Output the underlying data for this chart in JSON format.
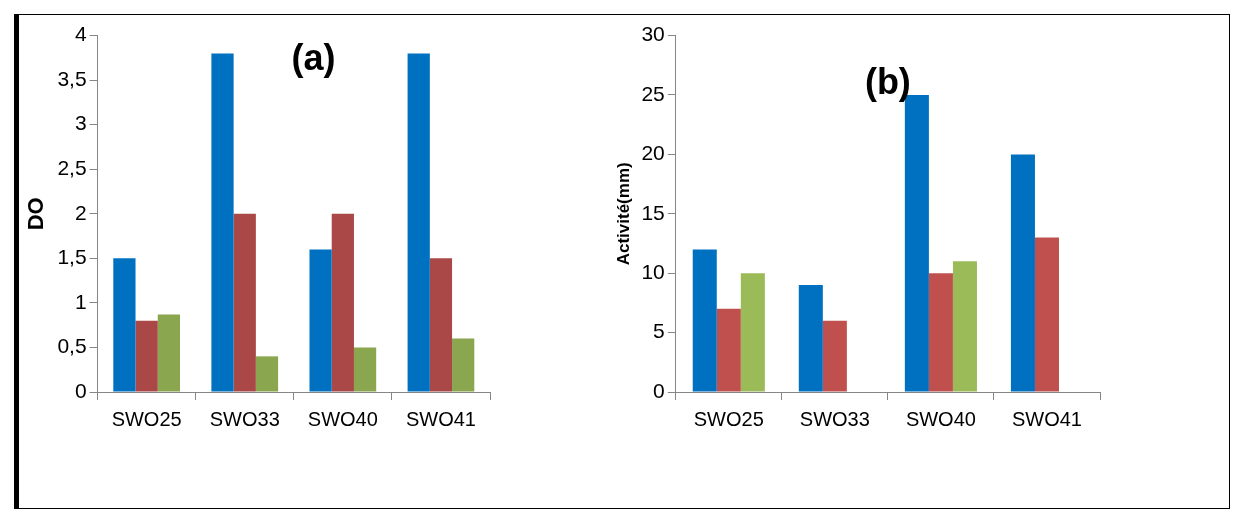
{
  "chart_data": [
    {
      "type": "bar",
      "title": "(a)",
      "ylabel": "DO",
      "categories": [
        "SWO25",
        "SWO33",
        "SWO40",
        "SWO41"
      ],
      "series": [
        {
          "color": "#0070c0",
          "values": [
            1.5,
            3.8,
            1.6,
            3.8
          ]
        },
        {
          "color": "#a94846",
          "values": [
            0.8,
            2,
            2,
            1.5
          ]
        },
        {
          "color": "#8aa64f",
          "values": [
            0.87,
            0.4,
            0.5,
            0.6
          ]
        }
      ],
      "ylim": [
        0,
        4
      ],
      "yticks": [
        0,
        {
          "value": 0.5,
          "label": "0,5"
        },
        1,
        {
          "value": 1.5,
          "label": "1,5"
        },
        2,
        {
          "value": 2.5,
          "label": "2,5"
        },
        3,
        {
          "value": 3.5,
          "label": "3,5"
        },
        4
      ],
      "legend": false
    },
    {
      "type": "bar",
      "title": "(b)",
      "ylabel": "Activité(mm)",
      "categories": [
        "SWO25",
        "SWO33",
        "SWO40",
        "SWO41"
      ],
      "series": [
        {
          "color": "#0070c0",
          "values": [
            12,
            9,
            25,
            20
          ]
        },
        {
          "color": "#c0504d",
          "values": [
            7,
            6,
            10,
            13
          ]
        },
        {
          "color": "#9bbb59",
          "values": [
            10,
            null,
            11,
            null
          ]
        }
      ],
      "ylim": [
        0,
        30
      ],
      "yticks": [
        0,
        5,
        10,
        15,
        20,
        25,
        30
      ],
      "legend": false
    }
  ]
}
